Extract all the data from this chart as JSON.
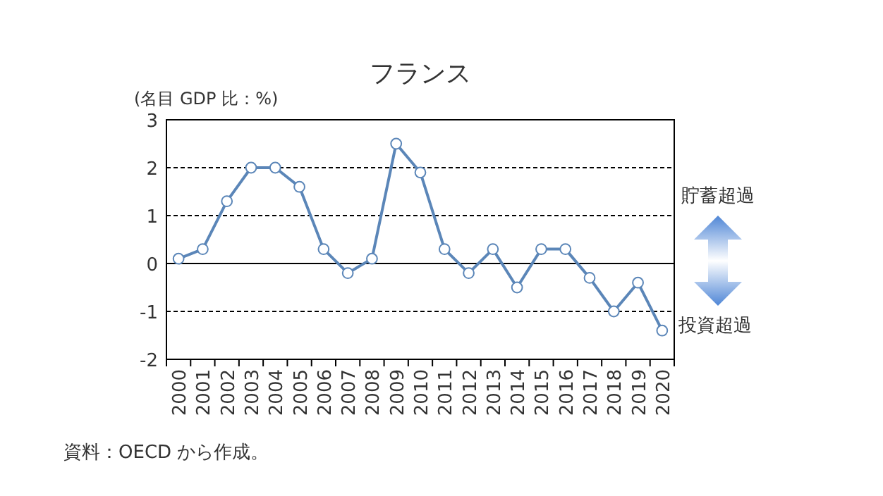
{
  "chart_data": {
    "type": "line",
    "title": "フランス",
    "ylabel": "(名目 GDP 比：%)",
    "categories": [
      "2000",
      "2001",
      "2002",
      "2003",
      "2004",
      "2005",
      "2006",
      "2007",
      "2008",
      "2009",
      "2010",
      "2011",
      "2012",
      "2013",
      "2014",
      "2015",
      "2016",
      "2017",
      "2018",
      "2019",
      "2020"
    ],
    "series": [
      {
        "color": "#5b86b8",
        "values": [
          0.1,
          0.3,
          1.3,
          2.0,
          2.0,
          1.6,
          0.3,
          -0.2,
          0.1,
          2.5,
          1.9,
          0.3,
          -0.2,
          0.3,
          -0.5,
          0.3,
          0.3,
          -0.3,
          -1.0,
          -0.4,
          -1.4
        ]
      }
    ],
    "ylim": [
      -2,
      3
    ],
    "yticks": [
      -2,
      -1,
      0,
      1,
      2,
      3
    ],
    "grid": "y",
    "marker": "circle",
    "line_style": "solid",
    "ref_lines": [
      {
        "axis": "y",
        "value": 0,
        "label": null,
        "color": "#000000",
        "line_style": "solid"
      }
    ],
    "annotations": [
      "貯蓄超過",
      "投資超過",
      "資料：OECD から作成。"
    ]
  }
}
